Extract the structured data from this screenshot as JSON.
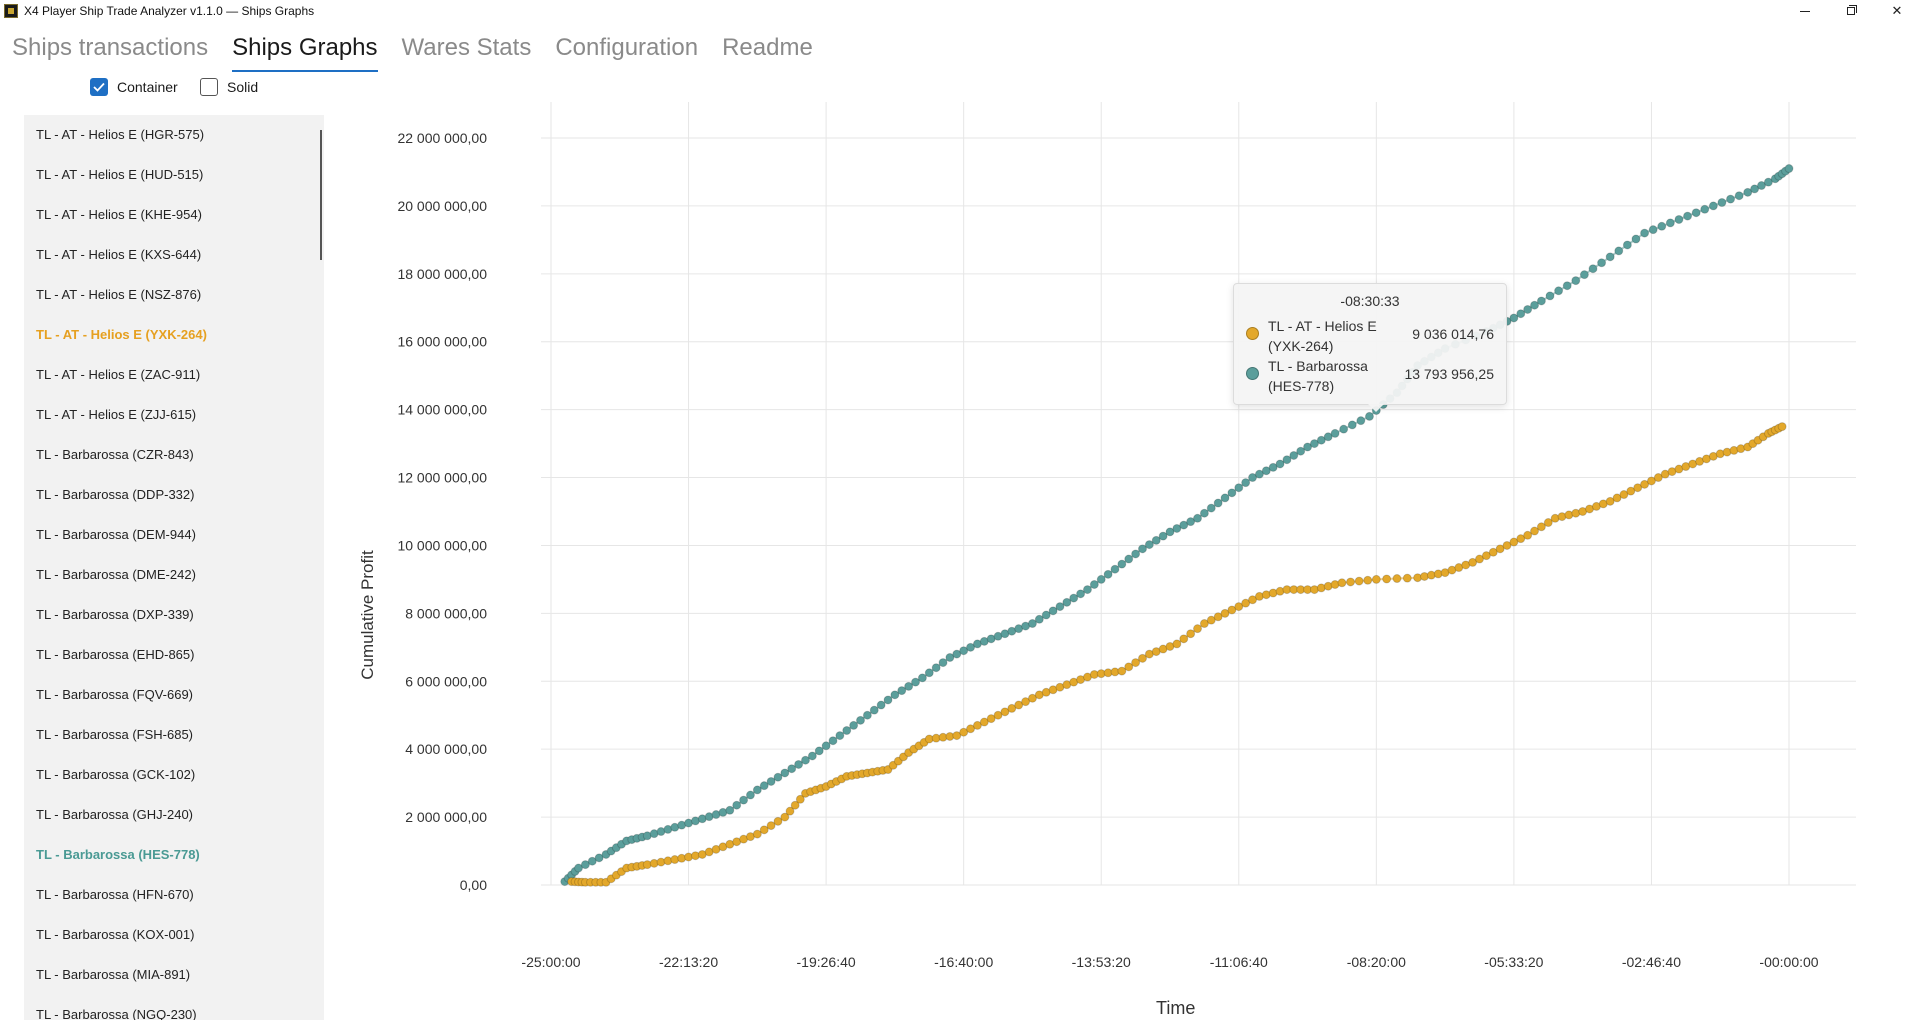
{
  "window": {
    "title": "X4 Player Ship Trade Analyzer v1.1.0 — Ships Graphs",
    "icon": "app-logo-icon",
    "controls": [
      "minimize-icon",
      "maximize-icon",
      "close-icon"
    ]
  },
  "tabs": [
    {
      "label": "Ships transactions",
      "active": false
    },
    {
      "label": "Ships Graphs",
      "active": true
    },
    {
      "label": "Wares Stats",
      "active": false
    },
    {
      "label": "Configuration",
      "active": false
    },
    {
      "label": "Readme",
      "active": false
    }
  ],
  "filters": {
    "container": {
      "label": "Container",
      "checked": true
    },
    "solid": {
      "label": "Solid",
      "checked": false
    }
  },
  "ship_list": {
    "items": [
      {
        "label": "TL - AT - Helios E (HGR-575)",
        "selected": ""
      },
      {
        "label": "TL - AT - Helios E (HUD-515)",
        "selected": ""
      },
      {
        "label": "TL - AT - Helios E (KHE-954)",
        "selected": ""
      },
      {
        "label": "TL - AT - Helios E (KXS-644)",
        "selected": ""
      },
      {
        "label": "TL - AT - Helios E (NSZ-876)",
        "selected": ""
      },
      {
        "label": "TL - AT - Helios E (YXK-264)",
        "selected": "orange"
      },
      {
        "label": "TL - AT - Helios E (ZAC-911)",
        "selected": ""
      },
      {
        "label": "TL - AT - Helios E (ZJJ-615)",
        "selected": ""
      },
      {
        "label": "TL - Barbarossa (CZR-843)",
        "selected": ""
      },
      {
        "label": "TL - Barbarossa (DDP-332)",
        "selected": ""
      },
      {
        "label": "TL - Barbarossa (DEM-944)",
        "selected": ""
      },
      {
        "label": "TL - Barbarossa (DME-242)",
        "selected": ""
      },
      {
        "label": "TL - Barbarossa (DXP-339)",
        "selected": ""
      },
      {
        "label": "TL - Barbarossa (EHD-865)",
        "selected": ""
      },
      {
        "label": "TL - Barbarossa (FQV-669)",
        "selected": ""
      },
      {
        "label": "TL - Barbarossa (FSH-685)",
        "selected": ""
      },
      {
        "label": "TL - Barbarossa (GCK-102)",
        "selected": ""
      },
      {
        "label": "TL - Barbarossa (GHJ-240)",
        "selected": ""
      },
      {
        "label": "TL - Barbarossa (HES-778)",
        "selected": "teal"
      },
      {
        "label": "TL - Barbarossa (HFN-670)",
        "selected": ""
      },
      {
        "label": "TL - Barbarossa (KOX-001)",
        "selected": ""
      },
      {
        "label": "TL - Barbarossa (MIA-891)",
        "selected": ""
      },
      {
        "label": "TL - Barbarossa (NGQ-230)",
        "selected": ""
      }
    ]
  },
  "colors": {
    "accent": "#1e6fc4",
    "series_orange": "#e3a82b",
    "series_teal": "#5b9e9b"
  },
  "tooltip": {
    "title": "-08:30:33",
    "rows": [
      {
        "name": "TL - AT - Helios E (YXK-264)",
        "value": "9 036 014,76",
        "color": "#e3a82b"
      },
      {
        "name": "TL - Barbarossa (HES-778)",
        "value": "13 793 956,25",
        "color": "#5b9e9b"
      }
    ]
  },
  "chart_data": {
    "type": "scatter",
    "title": "",
    "xlabel": "Time",
    "ylabel": "Cumulative Profit",
    "x_unit": "seconds relative to now",
    "xlim": [
      -90000,
      0
    ],
    "ylim": [
      0,
      22000000
    ],
    "x_ticks": [
      {
        "value": -90000,
        "label": "-25:00:00"
      },
      {
        "value": -80000,
        "label": "-22:13:20"
      },
      {
        "value": -70000,
        "label": "-19:26:40"
      },
      {
        "value": -60000,
        "label": "-16:40:00"
      },
      {
        "value": -50000,
        "label": "-13:53:20"
      },
      {
        "value": -40000,
        "label": "-11:06:40"
      },
      {
        "value": -30000,
        "label": "-08:20:00"
      },
      {
        "value": -20000,
        "label": "-05:33:20"
      },
      {
        "value": -10000,
        "label": "-02:46:40"
      },
      {
        "value": 0,
        "label": "-00:00:00"
      }
    ],
    "y_ticks": [
      {
        "value": 0,
        "label": "0,00"
      },
      {
        "value": 2000000,
        "label": "2 000 000,00"
      },
      {
        "value": 4000000,
        "label": "4 000 000,00"
      },
      {
        "value": 6000000,
        "label": "6 000 000,00"
      },
      {
        "value": 8000000,
        "label": "8 000 000,00"
      },
      {
        "value": 10000000,
        "label": "10 000 000,00"
      },
      {
        "value": 12000000,
        "label": "12 000 000,00"
      },
      {
        "value": 14000000,
        "label": "14 000 000,00"
      },
      {
        "value": 16000000,
        "label": "16 000 000,00"
      },
      {
        "value": 18000000,
        "label": "18 000 000,00"
      },
      {
        "value": 20000000,
        "label": "20 000 000,00"
      },
      {
        "value": 22000000,
        "label": "22 000 000,00"
      }
    ],
    "grid": true,
    "series": [
      {
        "name": "TL - Barbarossa (HES-778)",
        "color": "#5b9e9b",
        "points": [
          [
            -89000,
            100000
          ],
          [
            -88000,
            500000
          ],
          [
            -86000,
            900000
          ],
          [
            -84500,
            1300000
          ],
          [
            -83000,
            1450000
          ],
          [
            -81000,
            1700000
          ],
          [
            -79000,
            1950000
          ],
          [
            -77000,
            2200000
          ],
          [
            -75000,
            2800000
          ],
          [
            -73000,
            3300000
          ],
          [
            -71000,
            3800000
          ],
          [
            -69000,
            4400000
          ],
          [
            -67000,
            5000000
          ],
          [
            -65000,
            5600000
          ],
          [
            -63000,
            6100000
          ],
          [
            -61000,
            6700000
          ],
          [
            -59000,
            7100000
          ],
          [
            -57000,
            7400000
          ],
          [
            -55000,
            7700000
          ],
          [
            -53000,
            8200000
          ],
          [
            -51000,
            8700000
          ],
          [
            -49000,
            9300000
          ],
          [
            -47000,
            9900000
          ],
          [
            -45000,
            10400000
          ],
          [
            -43000,
            10800000
          ],
          [
            -41000,
            11400000
          ],
          [
            -39000,
            12000000
          ],
          [
            -37000,
            12400000
          ],
          [
            -35000,
            12900000
          ],
          [
            -33000,
            13300000
          ],
          [
            -30500,
            13800000
          ],
          [
            -28500,
            14500000
          ],
          [
            -27000,
            15300000
          ],
          [
            -25000,
            15800000
          ],
          [
            -22000,
            16300000
          ],
          [
            -20000,
            16700000
          ],
          [
            -18000,
            17200000
          ],
          [
            -15500,
            17800000
          ],
          [
            -13000,
            18500000
          ],
          [
            -10500,
            19200000
          ],
          [
            -8000,
            19600000
          ],
          [
            -5500,
            20000000
          ],
          [
            -3000,
            20400000
          ],
          [
            -1000,
            20800000
          ],
          [
            0,
            21100000
          ]
        ]
      },
      {
        "name": "TL - AT - Helios E (YXK-264)",
        "color": "#e3a82b",
        "points": [
          [
            -88500,
            100000
          ],
          [
            -87500,
            80000
          ],
          [
            -86000,
            80000
          ],
          [
            -84500,
            500000
          ],
          [
            -83000,
            600000
          ],
          [
            -81000,
            750000
          ],
          [
            -79000,
            900000
          ],
          [
            -77000,
            1200000
          ],
          [
            -75000,
            1500000
          ],
          [
            -73000,
            2000000
          ],
          [
            -71500,
            2700000
          ],
          [
            -70000,
            2900000
          ],
          [
            -68500,
            3200000
          ],
          [
            -67000,
            3300000
          ],
          [
            -65500,
            3400000
          ],
          [
            -64000,
            3900000
          ],
          [
            -62500,
            4300000
          ],
          [
            -60500,
            4400000
          ],
          [
            -58500,
            4800000
          ],
          [
            -56500,
            5200000
          ],
          [
            -54500,
            5600000
          ],
          [
            -52500,
            5900000
          ],
          [
            -50500,
            6200000
          ],
          [
            -48500,
            6300000
          ],
          [
            -46500,
            6800000
          ],
          [
            -44500,
            7100000
          ],
          [
            -42500,
            7700000
          ],
          [
            -40500,
            8100000
          ],
          [
            -38500,
            8500000
          ],
          [
            -36500,
            8700000
          ],
          [
            -34500,
            8700000
          ],
          [
            -32500,
            8900000
          ],
          [
            -30000,
            9000000
          ],
          [
            -27000,
            9050000
          ],
          [
            -25000,
            9200000
          ],
          [
            -23000,
            9500000
          ],
          [
            -21000,
            9900000
          ],
          [
            -19000,
            10300000
          ],
          [
            -17000,
            10800000
          ],
          [
            -15000,
            11000000
          ],
          [
            -13000,
            11300000
          ],
          [
            -11000,
            11700000
          ],
          [
            -9000,
            12100000
          ],
          [
            -7000,
            12400000
          ],
          [
            -5000,
            12700000
          ],
          [
            -3000,
            12900000
          ],
          [
            -1500,
            13300000
          ],
          [
            -500,
            13500000
          ]
        ]
      }
    ]
  }
}
